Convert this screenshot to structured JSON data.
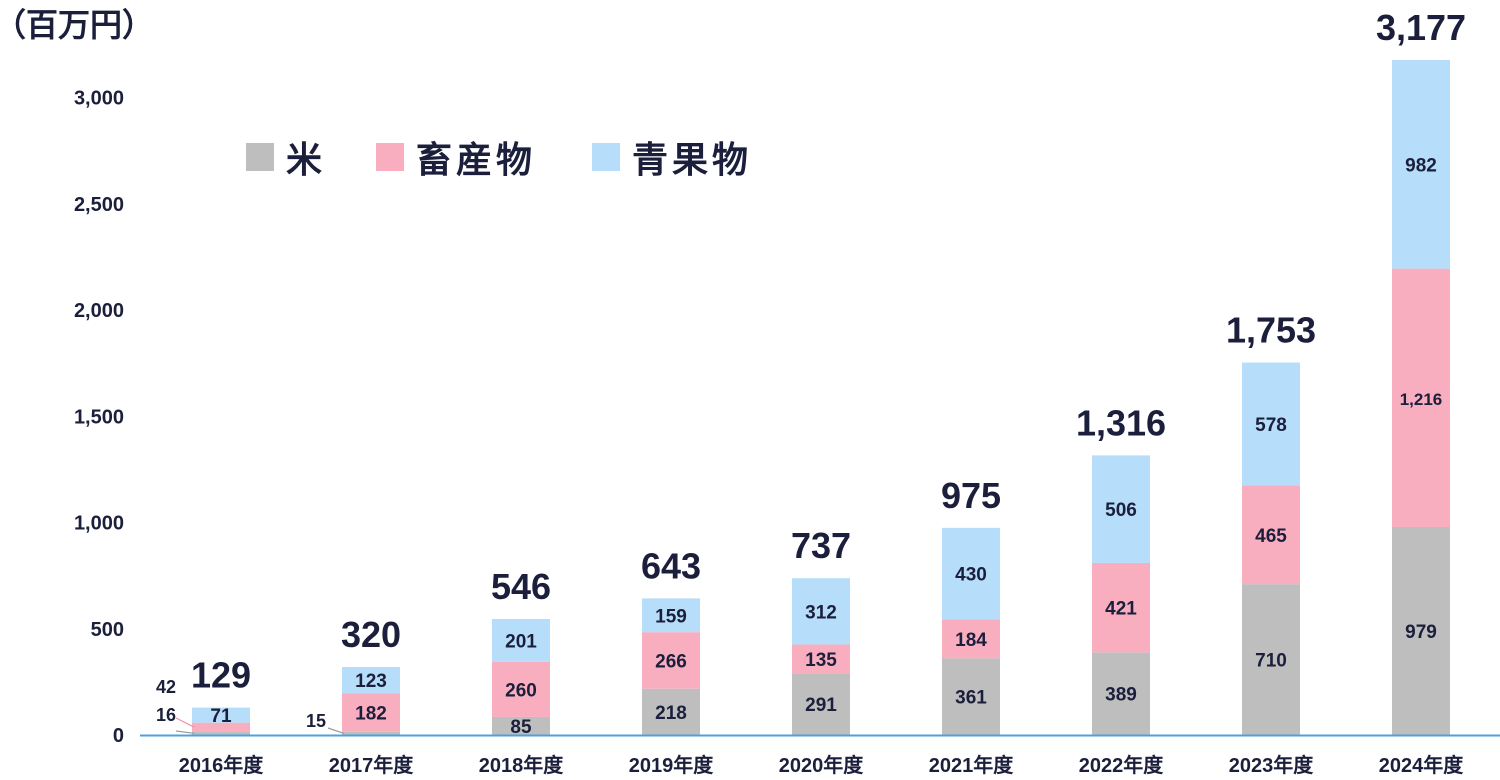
{
  "chart_data": {
    "type": "bar",
    "stacked": true,
    "unit_label": "（百万円）",
    "categories": [
      "2016年度",
      "2017年度",
      "2018年度",
      "2019年度",
      "2020年度",
      "2021年度",
      "2022年度",
      "2023年度",
      "2024年度"
    ],
    "series": [
      {
        "name": "米",
        "color": "#bebebe",
        "values": [
          16,
          15,
          85,
          218,
          291,
          361,
          389,
          710,
          979
        ],
        "labels": [
          "16",
          "15",
          "85",
          "218",
          "291",
          "361",
          "389",
          "710",
          "979"
        ]
      },
      {
        "name": "畜産物",
        "color": "#f9aec0",
        "values": [
          42,
          182,
          260,
          266,
          135,
          184,
          421,
          465,
          1216
        ],
        "labels": [
          "42",
          "182",
          "260",
          "266",
          "135",
          "184",
          "421",
          "465",
          "1,216"
        ]
      },
      {
        "name": "青果物",
        "color": "#b6ddfa",
        "values": [
          71,
          123,
          201,
          159,
          312,
          430,
          506,
          578,
          982
        ],
        "labels": [
          "71",
          "123",
          "201",
          "159",
          "312",
          "430",
          "506",
          "578",
          "982"
        ]
      }
    ],
    "totals": [
      "129",
      "320",
      "546",
      "643",
      "737",
      "975",
      "1,316",
      "1,753",
      "3,177"
    ],
    "y_ticks": [
      0,
      500,
      1000,
      1500,
      2000,
      2500,
      3000
    ],
    "y_tick_labels": [
      "0",
      "500",
      "1,000",
      "1,500",
      "2,000",
      "2,500",
      "3,000"
    ],
    "ylim": [
      0,
      3177
    ],
    "axis_color": "#4aa3e0",
    "text_color": "#1b1f3b",
    "legend_position": "top-left"
  }
}
